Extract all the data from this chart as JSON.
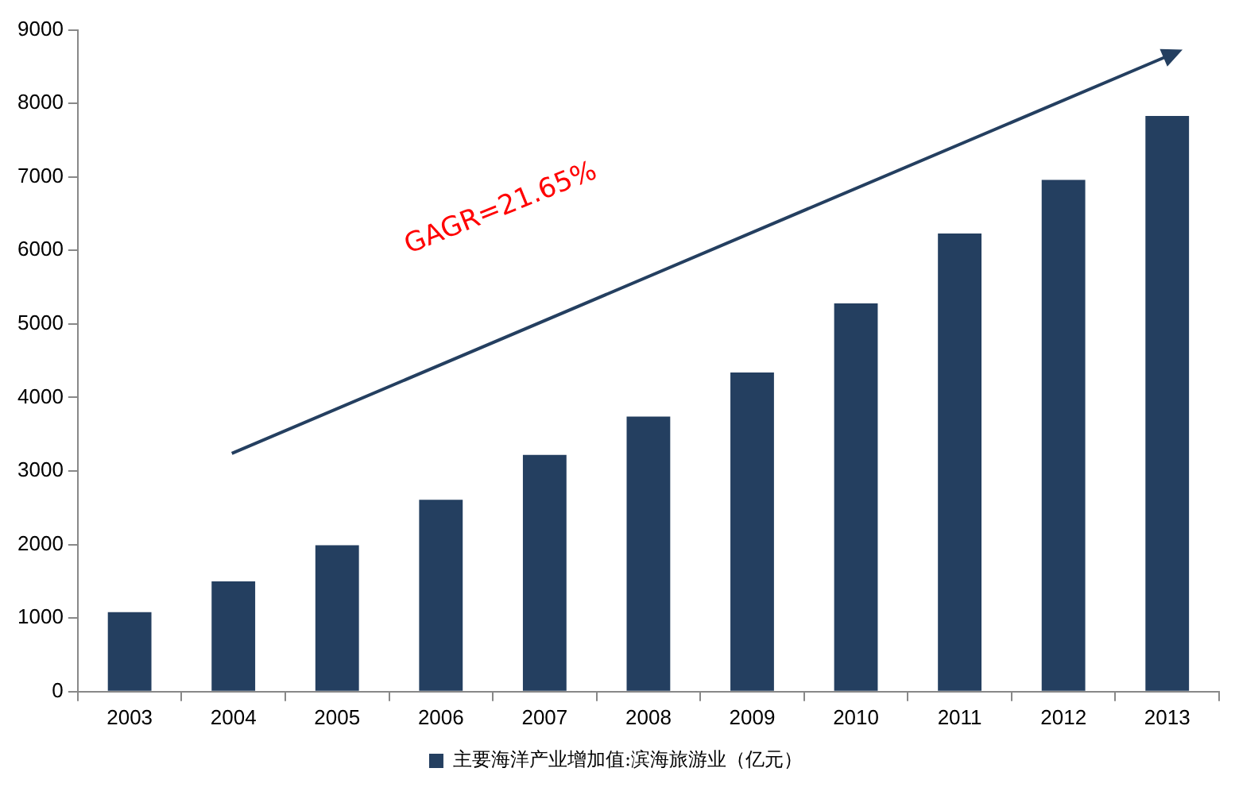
{
  "chart_data": {
    "type": "bar",
    "categories": [
      "2003",
      "2004",
      "2005",
      "2006",
      "2007",
      "2008",
      "2009",
      "2010",
      "2011",
      "2012",
      "2013"
    ],
    "series": [
      {
        "name": "主要海洋产业增加值:滨海旅游业（亿元）",
        "color": "#243f60",
        "values": [
          1080,
          1500,
          1990,
          2610,
          3220,
          3740,
          4340,
          5280,
          6230,
          6960,
          7830
        ]
      }
    ],
    "ylim": [
      0,
      9000
    ],
    "yticks": [
      0,
      1000,
      2000,
      3000,
      4000,
      5000,
      6000,
      7000,
      8000,
      9000
    ],
    "grid": false,
    "legend": "bottom",
    "annotations": [
      "GAGR=21.65%"
    ]
  }
}
